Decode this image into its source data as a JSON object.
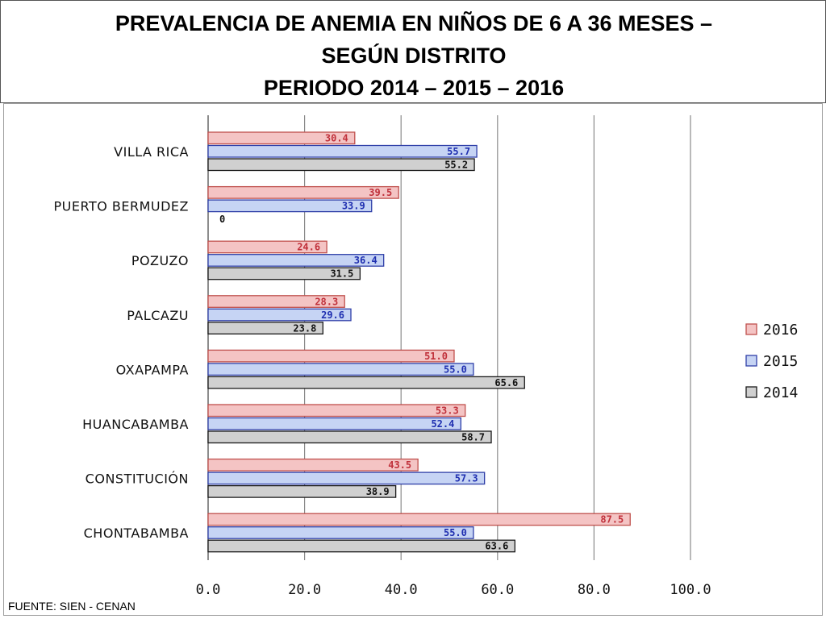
{
  "title": {
    "line1": "PREVALENCIA DE ANEMIA EN NIÑOS DE 6 A 36 MESES –",
    "line2": "SEGÚN DISTRITO",
    "line3": "PERIODO 2014 – 2015 – 2016"
  },
  "source": "FUENTE: SIEN - CENAN",
  "colors": {
    "2016": "#f4c4c4",
    "2016_stroke": "#c0504d",
    "2016_text": "#c0303a",
    "2015": "#c6d4f4",
    "2015_stroke": "#2f3fa8",
    "2015_text": "#1f2fb0",
    "2014": "#d0d0d0",
    "2014_stroke": "#1a1a1a",
    "2014_text": "#111111"
  },
  "chart_data": {
    "type": "bar",
    "orientation": "horizontal",
    "categories": [
      "VILLA RICA",
      "PUERTO BERMUDEZ",
      "POZUZO",
      "PALCAZU",
      "OXAPAMPA",
      "HUANCABAMBA",
      "CONSTITUCIÓN",
      "CHONTABAMBA"
    ],
    "series": [
      {
        "name": "2016",
        "values": [
          30.4,
          39.5,
          24.6,
          28.3,
          51.0,
          53.3,
          43.5,
          87.5
        ],
        "labels": [
          "30.4",
          "39.5",
          "24.6",
          "28.3",
          "51.0",
          "53.3",
          "43.5",
          "87.5"
        ]
      },
      {
        "name": "2015",
        "values": [
          55.7,
          33.9,
          36.4,
          29.6,
          55.0,
          52.4,
          57.3,
          55.0
        ],
        "labels": [
          "55.7",
          "33.9",
          "36.4",
          "29.6",
          "55.0",
          "52.4",
          "57.3",
          "55.0"
        ]
      },
      {
        "name": "2014",
        "values": [
          55.2,
          0,
          31.5,
          23.8,
          65.6,
          58.7,
          38.9,
          63.6
        ],
        "labels": [
          "55.2",
          "0",
          "31.5",
          "23.8",
          "65.6",
          "58.7",
          "38.9",
          "63.6"
        ]
      }
    ],
    "xlim": [
      0,
      100
    ],
    "xticks": [
      0,
      20,
      40,
      60,
      80,
      100
    ],
    "xtick_labels": [
      "0.0",
      "20.0",
      "40.0",
      "60.0",
      "80.0",
      "100.0"
    ],
    "grid": "vertical",
    "legend": "right"
  }
}
